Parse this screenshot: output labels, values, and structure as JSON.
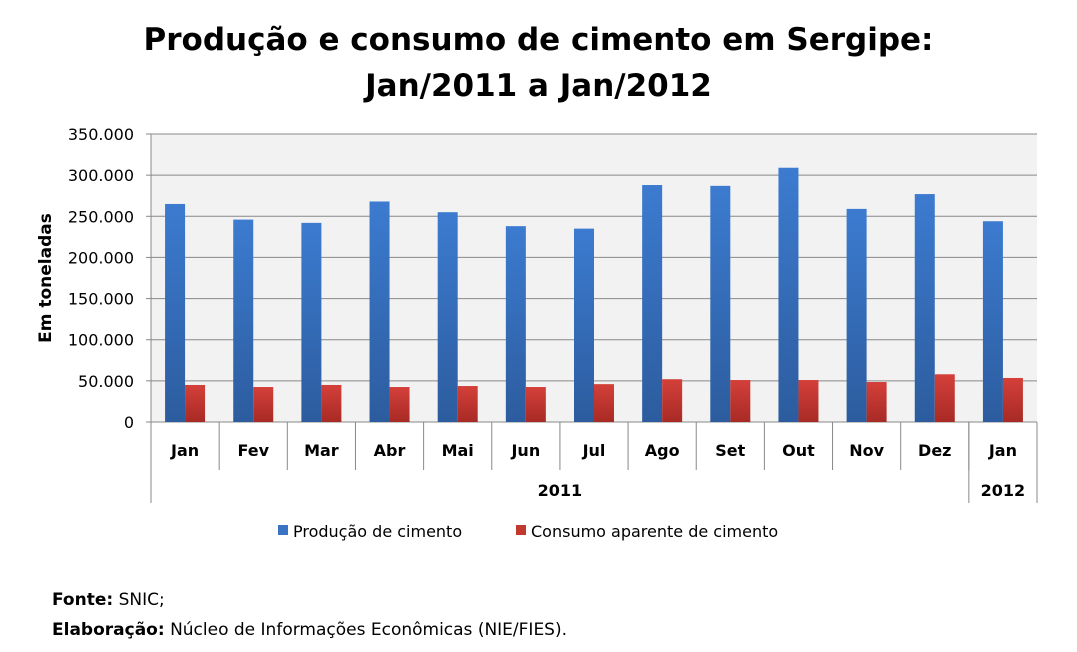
{
  "chart_data": {
    "type": "bar",
    "title_line1": "Produção e consumo de cimento em Sergipe:",
    "title_line2": "Jan/2011 a Jan/2012",
    "ylabel": "Em toneladas",
    "ylim": [
      0,
      350000
    ],
    "yticks": [
      "0",
      "50.000",
      "100.000",
      "150.000",
      "200.000",
      "250.000",
      "300.000",
      "350.000"
    ],
    "categories": [
      "Jan",
      "Fev",
      "Mar",
      "Abr",
      "Mai",
      "Jun",
      "Jul",
      "Ago",
      "Set",
      "Out",
      "Nov",
      "Dez",
      "Jan"
    ],
    "years": [
      {
        "label": "2011",
        "span": 12
      },
      {
        "label": "2012",
        "span": 1
      }
    ],
    "grid": true,
    "legend_position": "bottom",
    "series": [
      {
        "name": "Produção de cimento",
        "color": "#3A72C4",
        "values": [
          265000,
          246000,
          242000,
          268000,
          255000,
          238000,
          235000,
          288000,
          287000,
          309000,
          259000,
          277000,
          244000
        ]
      },
      {
        "name": "Consumo aparente de cimento",
        "color": "#C0392F",
        "values": [
          45000,
          42500,
          45000,
          42500,
          43700,
          42500,
          46000,
          52000,
          51000,
          51000,
          48600,
          58000,
          53500
        ]
      }
    ]
  },
  "footer": {
    "source_label": "Fonte:",
    "source_value": "SNIC;",
    "credit_label": "Elaboração:",
    "credit_value": "Núcleo de Informações Econômicas (NIE/FIES)."
  }
}
